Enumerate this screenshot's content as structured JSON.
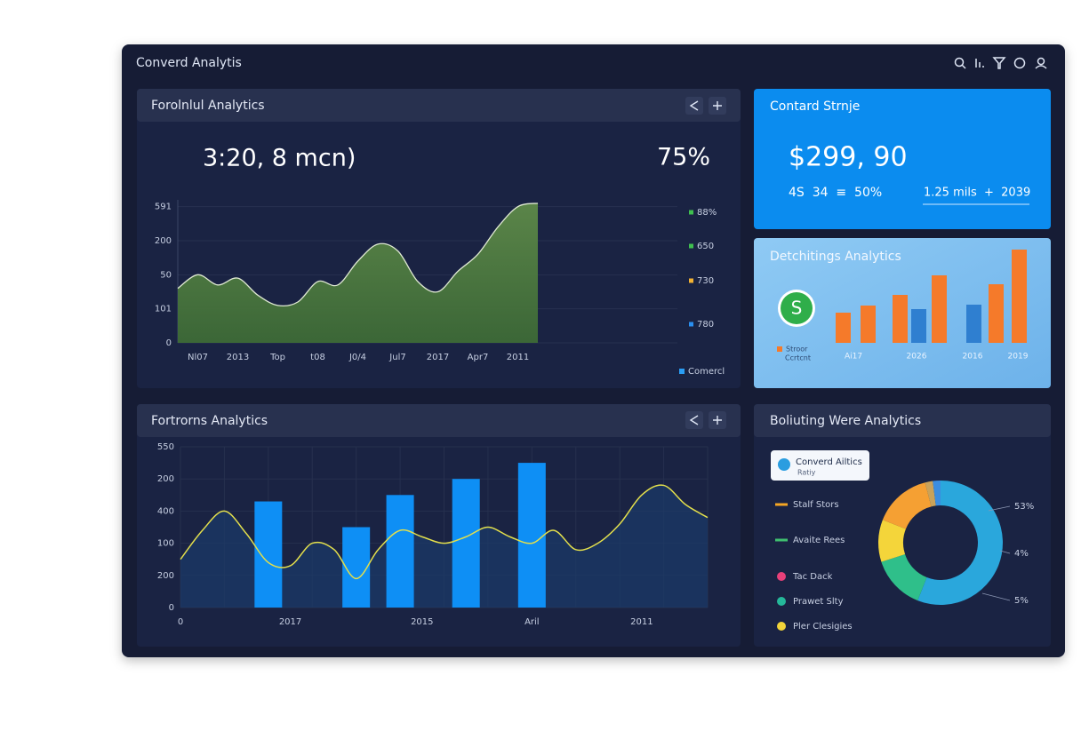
{
  "app_title": "Converd Analytis",
  "area_panel": {
    "title": "Forolnlul Analytics",
    "big_value": "3:20, 8 mcn)",
    "percent": "75%",
    "chart": {
      "type": "area",
      "categories": [
        null,
        "Nl07",
        null,
        "2013",
        null,
        "Top",
        null,
        "t08",
        null,
        "J0/4",
        null,
        "Jul7",
        null,
        "2017",
        null,
        "Apr7",
        null,
        "2011",
        null
      ],
      "values": [
        1.6,
        2.0,
        1.7,
        1.9,
        1.4,
        1.1,
        1.2,
        1.8,
        1.7,
        2.4,
        2.9,
        2.7,
        1.8,
        1.5,
        2.1,
        2.6,
        3.4,
        4.0,
        4.1
      ],
      "color": "#54803f",
      "ylim": [
        0,
        4.2
      ],
      "yticks": [
        0,
        {
          "value": 1,
          "label": "101"
        },
        {
          "value": 2,
          "label": "50"
        },
        {
          "value": 3,
          "label": "200"
        },
        {
          "value": 4,
          "label": "591"
        }
      ],
      "grid": true
    },
    "legend": [
      {
        "label": "88%",
        "color": "#3fbf4f"
      },
      {
        "label": "650",
        "color": "#3fbf4f"
      },
      {
        "label": "730",
        "color": "#f2b233"
      },
      {
        "label": "780",
        "color": "#2a8ff0"
      }
    ],
    "footer_legend": {
      "label": "Comercl",
      "color": "#2a9df4"
    }
  },
  "stat_panel": {
    "title": "Contard Strnje",
    "value": "$299, 90",
    "row_left": "4S  34  ≡  50%",
    "row_right": "1.25 mils  +  2039"
  },
  "bars_panel": {
    "title": "Detchitings Analytics",
    "badge": "S",
    "legend": [
      "Stroor",
      "Ccrtcnt"
    ],
    "chart": {
      "type": "bar",
      "values": [
        34,
        42,
        54,
        38,
        76,
        43,
        66,
        105
      ],
      "colors": [
        "#f57a2a",
        "#f57a2a",
        "#f57a2a",
        "#2f7fd0",
        "#f57a2a",
        "#2f7fd0",
        "#f57a2a",
        "#f57a2a"
      ],
      "ylim": [
        0,
        110
      ]
    },
    "x_labels": [
      "Ai17",
      "2026",
      "2016",
      "2019"
    ]
  },
  "combo_panel": {
    "title": "Fortrorns Analytics",
    "chart": {
      "type": "bar-line",
      "categories": [
        "0",
        null,
        null,
        null,
        null,
        "2017",
        null,
        null,
        null,
        null,
        null,
        "2015",
        null,
        null,
        null,
        null,
        "Aril",
        null,
        null,
        null,
        null,
        "2011",
        null,
        null,
        null
      ],
      "bar_values": [
        null,
        null,
        null,
        null,
        3.3,
        null,
        null,
        null,
        2.5,
        null,
        3.5,
        null,
        null,
        4.0,
        null,
        null,
        4.5,
        null,
        null,
        null,
        null,
        null,
        null,
        null,
        null
      ],
      "bar_color": "#0e8ff5",
      "line_values": [
        1.5,
        2.4,
        3.0,
        2.3,
        1.4,
        1.3,
        2.0,
        1.8,
        0.9,
        1.8,
        2.4,
        2.2,
        2.0,
        2.2,
        2.5,
        2.2,
        2.0,
        2.4,
        1.8,
        2.0,
        2.6,
        3.5,
        3.8,
        3.2,
        2.8
      ],
      "line_color": "#e3df4c",
      "ylim": [
        0,
        5
      ],
      "yticks": [
        0,
        {
          "value": 1,
          "label": "200"
        },
        {
          "value": 2,
          "label": "100"
        },
        {
          "value": 3,
          "label": "400"
        },
        {
          "value": 4,
          "label": "200"
        },
        {
          "value": 5,
          "label": "550"
        }
      ],
      "grid": true
    }
  },
  "donut_panel": {
    "title": "Boliuting Were Analytics",
    "badge": {
      "title": "Converd Ailtics",
      "subtitle": "Ratiy"
    },
    "legend": [
      {
        "label": "Stalf Stors",
        "color": "#f5a623",
        "shape": "line"
      },
      {
        "label": "Avaite Rees",
        "color": "#3fbf6f",
        "shape": "line"
      },
      {
        "label": "Tac Dack",
        "color": "#e8407a",
        "shape": "dot"
      },
      {
        "label": "Prawet Slty",
        "color": "#25b89a",
        "shape": "dot"
      },
      {
        "label": "Pler Clesigies",
        "color": "#f2d43a",
        "shape": "dot"
      }
    ],
    "chart": {
      "type": "donut",
      "values": [
        56,
        14,
        11,
        15,
        2,
        2
      ],
      "colors": [
        "#2aa7dc",
        "#2fbf8a",
        "#f4d53a",
        "#f5a033",
        "#c9a25a",
        "#3b8de0"
      ]
    },
    "annotations": [
      "53%",
      "4%",
      "5%"
    ]
  }
}
